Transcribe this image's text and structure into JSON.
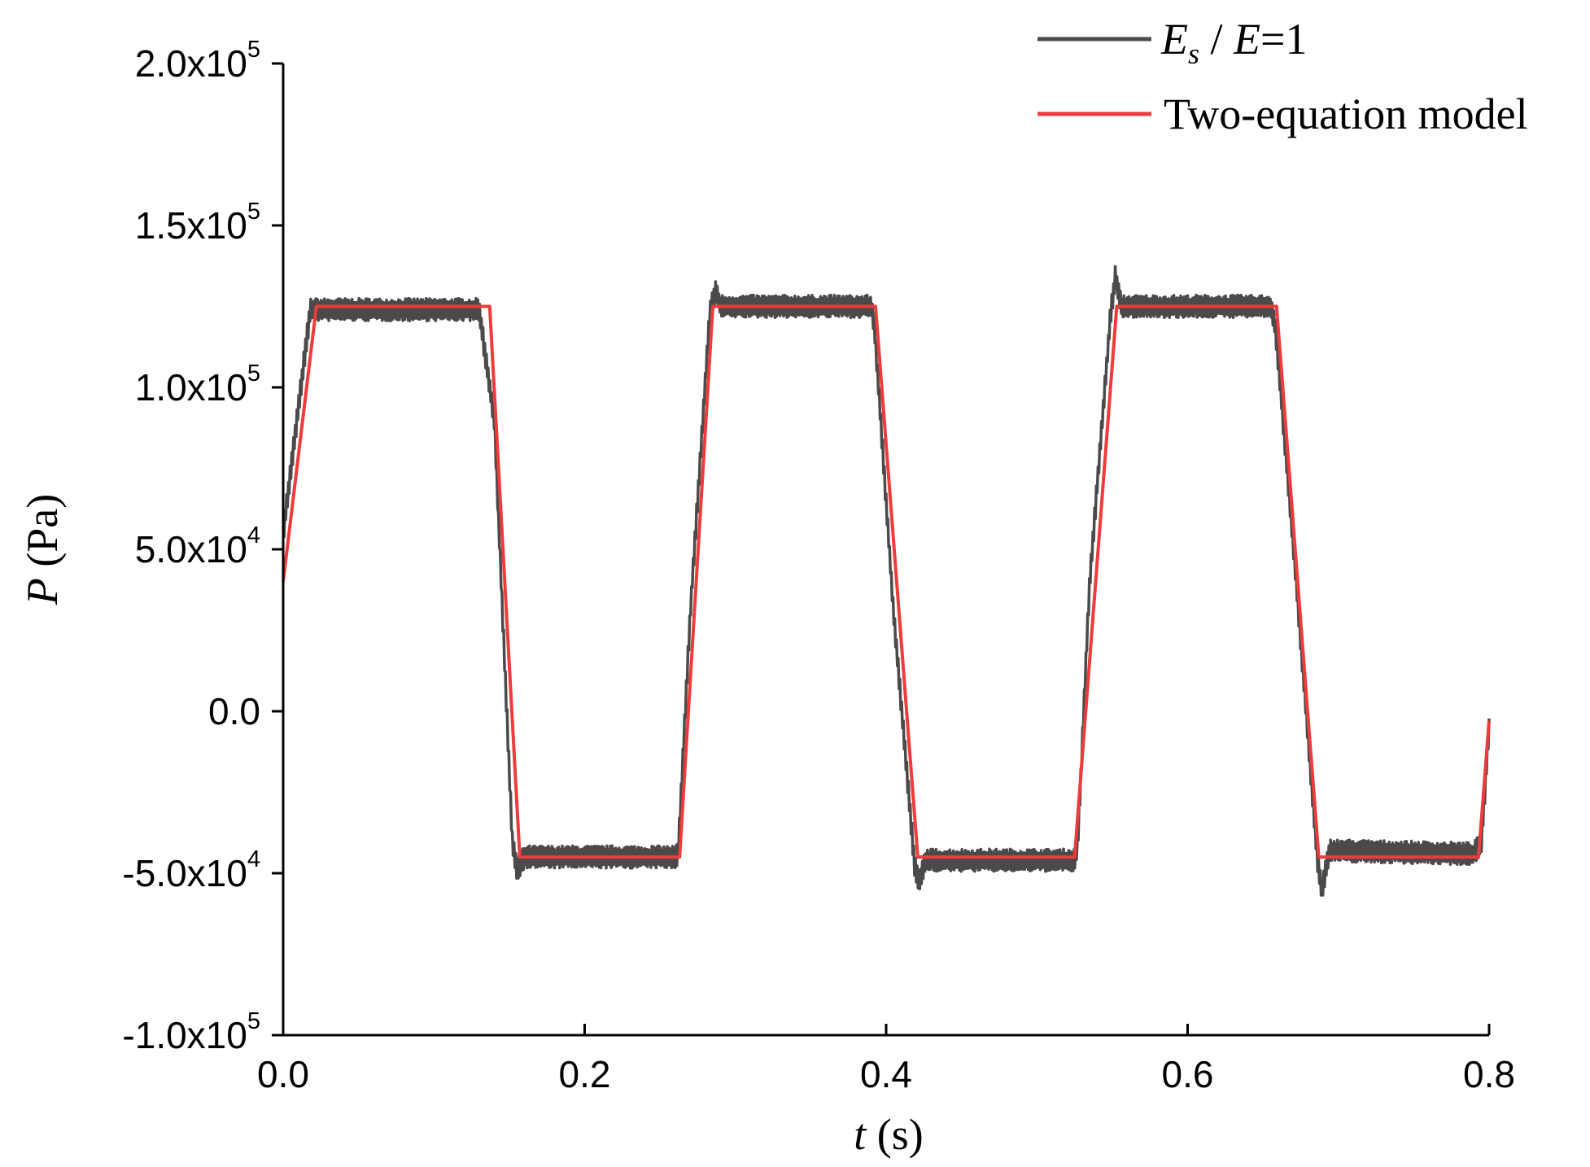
{
  "chart_data": {
    "type": "line",
    "xlabel": {
      "var": "t",
      "unit": "(s)"
    },
    "ylabel": {
      "var": "P",
      "unit": "(Pa)"
    },
    "xlim": [
      0.0,
      0.8
    ],
    "ylim": [
      -100000,
      200000
    ],
    "x_ticks": [
      {
        "value": 0.0,
        "label": "0.0"
      },
      {
        "value": 0.2,
        "label": "0.2"
      },
      {
        "value": 0.4,
        "label": "0.4"
      },
      {
        "value": 0.6,
        "label": "0.6"
      },
      {
        "value": 0.8,
        "label": "0.8"
      }
    ],
    "y_ticks": [
      {
        "value": 200000,
        "mantissa": "2.0x10",
        "exp": "5"
      },
      {
        "value": 150000,
        "mantissa": "1.5x10",
        "exp": "5"
      },
      {
        "value": 100000,
        "mantissa": "1.0x10",
        "exp": "5"
      },
      {
        "value": 50000,
        "mantissa": "5.0x10",
        "exp": "4"
      },
      {
        "value": 0,
        "mantissa": "0.0",
        "exp": ""
      },
      {
        "value": -50000,
        "mantissa": "-5.0x10",
        "exp": "4"
      },
      {
        "value": -100000,
        "mantissa": "-1.0x10",
        "exp": "5"
      }
    ],
    "grid": false,
    "legend_position": "top-right",
    "series": [
      {
        "key": "es",
        "legend": {
          "E": "E",
          "sub": "s",
          "rest": " / ",
          "E2": "E",
          "eq": "=1"
        },
        "color": "#4a4a4a",
        "style": "noisy-band",
        "noise_amplitude": 3500,
        "x": [
          0.0,
          0.018,
          0.025,
          0.13,
          0.14,
          0.152,
          0.155,
          0.16,
          0.26,
          0.262,
          0.27,
          0.283,
          0.287,
          0.29,
          0.39,
          0.392,
          0.405,
          0.419,
          0.422,
          0.426,
          0.525,
          0.527,
          0.535,
          0.549,
          0.552,
          0.556,
          0.655,
          0.658,
          0.672,
          0.686,
          0.689,
          0.694,
          0.79,
          0.795,
          0.8
        ],
        "y": [
          55000,
          124000,
          124000,
          124000,
          90000,
          -40000,
          -49000,
          -45000,
          -45000,
          -44000,
          30000,
          123000,
          130000,
          125000,
          125000,
          120000,
          30000,
          -48000,
          -53000,
          -46000,
          -46000,
          -42000,
          40000,
          123000,
          134000,
          125000,
          125000,
          120000,
          40000,
          -45000,
          -56000,
          -43000,
          -44000,
          -40000,
          -5000
        ]
      },
      {
        "key": "model",
        "legend_label": "Two-equation model",
        "color": "#ee3b3b",
        "style": "line",
        "x": [
          0.0,
          0.022,
          0.137,
          0.157,
          0.263,
          0.285,
          0.393,
          0.421,
          0.525,
          0.553,
          0.659,
          0.687,
          0.793,
          0.8
        ],
        "y": [
          40000,
          125000,
          125000,
          -45000,
          -45000,
          125000,
          125000,
          -45000,
          -45000,
          125000,
          125000,
          -45000,
          -45000,
          -3000
        ]
      }
    ]
  }
}
